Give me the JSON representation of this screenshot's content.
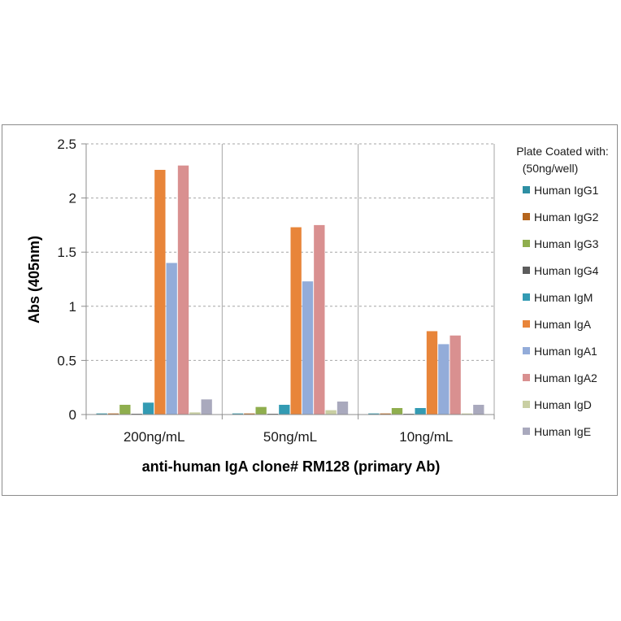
{
  "chart_data": {
    "type": "bar",
    "categories": [
      "200ng/mL",
      "50ng/mL",
      "10ng/mL"
    ],
    "series": [
      {
        "name": "Human IgG1",
        "color": "#2e8fa3",
        "values": [
          0.01,
          0.01,
          0.01
        ]
      },
      {
        "name": "Human IgG2",
        "color": "#b5651d",
        "values": [
          0.01,
          0.01,
          0.01
        ]
      },
      {
        "name": "Human IgG3",
        "color": "#8fae4e",
        "values": [
          0.09,
          0.07,
          0.06
        ]
      },
      {
        "name": "Human IgG4",
        "color": "#5c5c5c",
        "values": [
          0.005,
          0.005,
          0.005
        ]
      },
      {
        "name": "Human IgM",
        "color": "#339bb3",
        "values": [
          0.11,
          0.09,
          0.06
        ]
      },
      {
        "name": "Human IgA",
        "color": "#e8853a",
        "values": [
          2.26,
          1.73,
          0.77
        ]
      },
      {
        "name": "Human IgA1",
        "color": "#93acd9",
        "values": [
          1.4,
          1.23,
          0.65
        ]
      },
      {
        "name": "Human IgA2",
        "color": "#d99090",
        "values": [
          2.3,
          1.75,
          0.73
        ]
      },
      {
        "name": "Human IgD",
        "color": "#c9cfa3",
        "values": [
          0.02,
          0.04,
          0.01
        ]
      },
      {
        "name": "Human IgE",
        "color": "#a9a9bd",
        "values": [
          0.14,
          0.12,
          0.09
        ]
      }
    ],
    "title": "",
    "xlabel": "anti-human IgA clone# RM128 (primary Ab)",
    "ylabel": "Abs (405nm)",
    "ylim": [
      0,
      2.5
    ],
    "yticks": [
      {
        "value": 0,
        "label": "0"
      },
      {
        "value": 0.5,
        "label": "0.5"
      },
      {
        "value": 1,
        "label": "1"
      },
      {
        "value": 1.5,
        "label": "1.5"
      },
      {
        "value": 2,
        "label": "2"
      },
      {
        "value": 2.5,
        "label": "2.5"
      }
    ],
    "grid": true,
    "legend": {
      "position": "right",
      "title_line1": "Plate Coated with:",
      "title_line2": "(50ng/well)"
    }
  }
}
